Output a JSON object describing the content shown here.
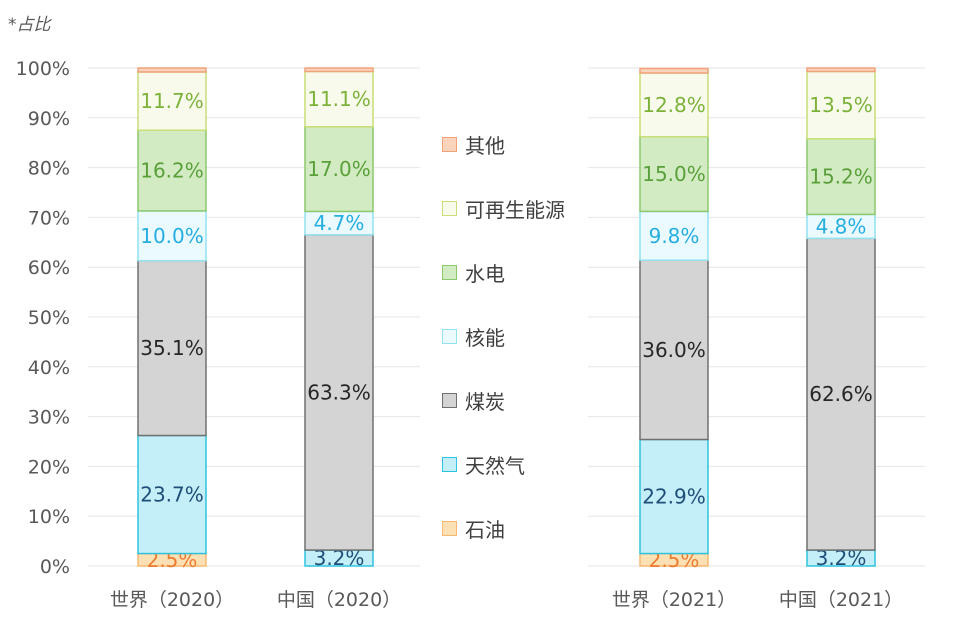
{
  "note": "*占比",
  "colors": {
    "石油": {
      "fill": "#fde0b4",
      "stroke": "#f6b972",
      "text": "#ed7d31"
    },
    "天然气": {
      "fill": "#c4eef8",
      "stroke": "#2ec4df",
      "text": "#1f4e79"
    },
    "煤炭": {
      "fill": "#d4d4d4",
      "stroke": "#707070",
      "text": "#262626"
    },
    "核能": {
      "fill": "#eafafe",
      "stroke": "#92e2f2",
      "text": "#27aee0"
    },
    "水电": {
      "fill": "#d3ebc3",
      "stroke": "#8cc96c",
      "text": "#5aa03a"
    },
    "可再生能源": {
      "fill": "#f8fbec",
      "stroke": "#c8de76",
      "text": "#7db23a"
    },
    "其他": {
      "fill": "#fad3bd",
      "stroke": "#f2a27b",
      "text": "#ed7d31"
    }
  },
  "chart_data": {
    "type": "bar",
    "stacked": true,
    "categories": [
      "世界（2020）",
      "中国（2020）",
      "世界（2021）",
      "中国（2021）"
    ],
    "series": [
      {
        "name": "石油",
        "values": [
          2.5,
          0,
          2.5,
          0
        ],
        "labels": [
          "2.5%",
          "",
          "2.5%",
          ""
        ]
      },
      {
        "name": "天然气",
        "values": [
          23.7,
          3.2,
          22.9,
          3.2
        ],
        "labels": [
          "23.7%",
          "3.2%",
          "22.9%",
          "3.2%"
        ]
      },
      {
        "name": "煤炭",
        "values": [
          35.1,
          63.3,
          36.0,
          62.6
        ],
        "labels": [
          "35.1%",
          "63.3%",
          "36.0%",
          "62.6%"
        ]
      },
      {
        "name": "核能",
        "values": [
          10.0,
          4.7,
          9.8,
          4.8
        ],
        "labels": [
          "10.0%",
          "4.7%",
          "9.8%",
          "4.8%"
        ]
      },
      {
        "name": "水电",
        "values": [
          16.2,
          17.0,
          15.0,
          15.2
        ],
        "labels": [
          "16.2%",
          "17.0%",
          "15.0%",
          "15.2%"
        ]
      },
      {
        "name": "可再生能源",
        "values": [
          11.7,
          11.1,
          12.8,
          13.5
        ],
        "labels": [
          "11.7%",
          "11.1%",
          "12.8%",
          "13.5%"
        ]
      },
      {
        "name": "其他",
        "values": [
          0.8,
          0.7,
          0.9,
          0.7
        ],
        "labels": [
          "",
          "",
          "",
          ""
        ]
      }
    ],
    "legend_order": [
      "其他",
      "可再生能源",
      "水电",
      "核能",
      "煤炭",
      "天然气",
      "石油"
    ],
    "yticks": [
      "0%",
      "10%",
      "20%",
      "30%",
      "40%",
      "50%",
      "60%",
      "70%",
      "80%",
      "90%",
      "100%"
    ],
    "ylim": [
      0,
      100
    ],
    "grid": true,
    "legend_position": "center"
  }
}
